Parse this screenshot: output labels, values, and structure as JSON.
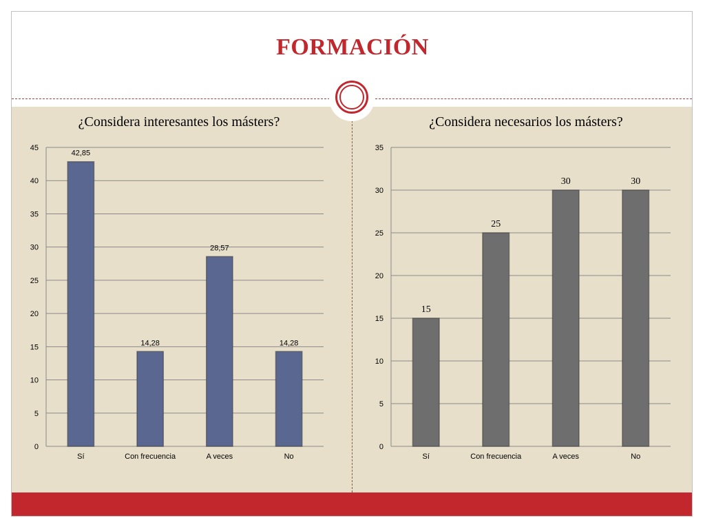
{
  "slide": {
    "title": "FORMACIÓN",
    "accent_color": "#c1272d",
    "background_color": "#e7dfca"
  },
  "chart_data": [
    {
      "type": "bar",
      "title": "¿Considera interesantes los másters?",
      "categories": [
        "Sí",
        "Con frecuencia",
        "A veces",
        "No"
      ],
      "values": [
        42.85,
        14.28,
        28.57,
        14.28
      ],
      "data_labels": [
        "42,85",
        "14,28",
        "28,57",
        "14,28"
      ],
      "ylim": [
        0,
        45
      ],
      "yticks": [
        0,
        5,
        10,
        15,
        20,
        25,
        30,
        35,
        40,
        45
      ],
      "xlabel": "",
      "ylabel": "",
      "grid": true,
      "color": "#5a6790"
    },
    {
      "type": "bar",
      "title": "¿Considera necesarios los másters?",
      "categories": [
        "Sí",
        "Con frecuencia",
        "A veces",
        "No"
      ],
      "values": [
        15,
        25,
        30,
        30
      ],
      "data_labels": [
        "15",
        "25",
        "30",
        "30"
      ],
      "ylim": [
        0,
        35
      ],
      "yticks": [
        0,
        5,
        10,
        15,
        20,
        25,
        30,
        35
      ],
      "xlabel": "",
      "ylabel": "",
      "grid": true,
      "color": "#6e6e6e"
    }
  ]
}
